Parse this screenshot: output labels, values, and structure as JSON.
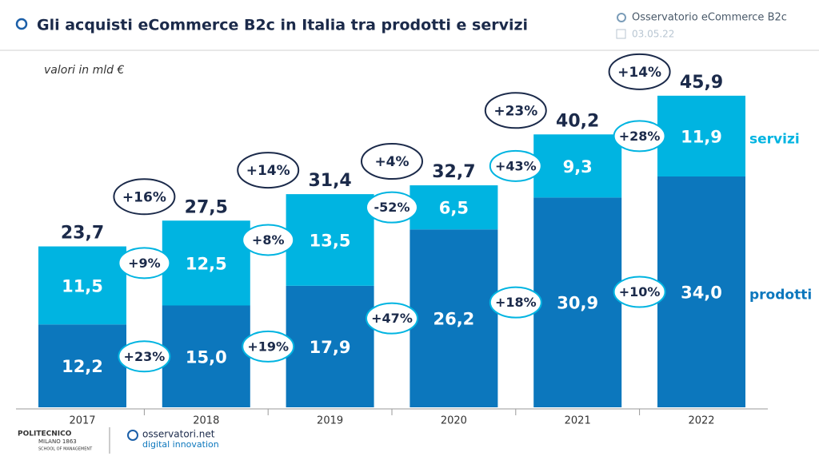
{
  "chart_data": {
    "type": "stacked-bar",
    "title": "Gli acquisti eCommerce B2c in Italia tra prodotti e servizi",
    "source": "Osservatorio eCommerce B2c",
    "date": "03.05.22",
    "subtitle": "valori in mld €",
    "categories": [
      "2017",
      "2018",
      "2019",
      "2020",
      "2021",
      "2022"
    ],
    "series": [
      {
        "name": "prodotti",
        "color": "#0c77bd",
        "values": [
          12.2,
          15.0,
          17.9,
          26.2,
          30.9,
          34.0
        ],
        "value_labels": [
          "12,2",
          "15,0",
          "17,9",
          "26,2",
          "30,9",
          "34,0"
        ],
        "growth_labels": [
          "+23%",
          "+19%",
          "+47%",
          "+18%",
          "+10%"
        ]
      },
      {
        "name": "servizi",
        "color": "#00b4e1",
        "values": [
          11.5,
          12.5,
          13.5,
          6.5,
          9.3,
          11.9
        ],
        "value_labels": [
          "11,5",
          "12,5",
          "13,5",
          "6,5",
          "9,3",
          "11,9"
        ],
        "growth_labels": [
          "+9%",
          "+8%",
          "-52%",
          "+43%",
          "+28%"
        ]
      }
    ],
    "totals": [
      23.7,
      27.5,
      31.4,
      32.7,
      40.2,
      45.9
    ],
    "total_labels": [
      "23,7",
      "27,5",
      "31,4",
      "32,7",
      "40,2",
      "45,9"
    ],
    "total_growth_labels": [
      "+16%",
      "+14%",
      "+4%",
      "+23%",
      "+14%"
    ],
    "footer": {
      "logo_left": [
        "POLITECNICO",
        "MILANO 1863",
        "SCHOOL OF MANAGEMENT"
      ],
      "logo_right": [
        "osservatori.net",
        "digital innovation"
      ]
    }
  }
}
